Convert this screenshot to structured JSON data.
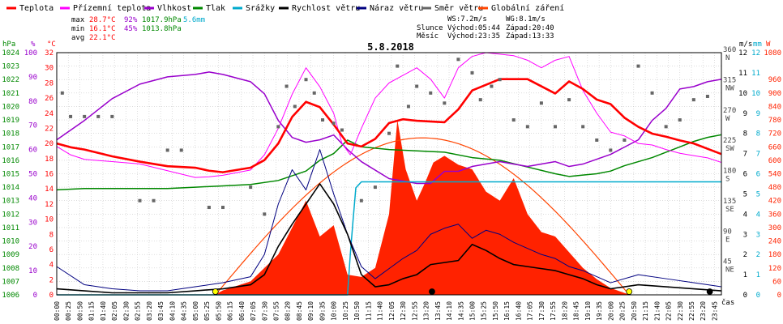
{
  "legend": [
    {
      "label": "Teplota",
      "color": "#ff0000"
    },
    {
      "label": "Přízemní teplota",
      "color": "#ff00ff"
    },
    {
      "label": "Vlhkost",
      "color": "#9900cc"
    },
    {
      "label": "Tlak",
      "color": "#008800"
    },
    {
      "label": "Srážky",
      "color": "#00aacc"
    },
    {
      "label": "Rychlost větru",
      "color": "#000000"
    },
    {
      "label": "Náraz větru",
      "color": "#000080"
    },
    {
      "label": "Směr větru",
      "color": "#666666"
    },
    {
      "label": "Globální záření",
      "color": "#ff4400"
    }
  ],
  "stats": {
    "max": {
      "label": "max",
      "temp": "28.7°C",
      "hum": "92%",
      "press": "1017.9hPa",
      "rain": "5.6mm"
    },
    "min": {
      "label": "min",
      "temp": "16.1°C",
      "hum": "45%",
      "press": "1013.8hPa"
    },
    "avg": {
      "label": "avg",
      "temp": "22.1°C"
    }
  },
  "wind_info": {
    "ws": "WS:7.2m/s",
    "wg": "WG:8.1m/s",
    "slunce": "Slunce",
    "slunce_vychod": "Východ:05:44",
    "slunce_zapad": "Západ:20:40",
    "mesic": "Měsíc",
    "mesic_vychod": "Východ:23:35",
    "mesic_zapad": "Západ:13:33"
  },
  "colors": {
    "temp": "#ff0000",
    "ground": "#ff00ff",
    "hum": "#9900cc",
    "press": "#008800",
    "rain": "#00aacc",
    "wind": "#000000",
    "gust": "#000080",
    "dir": "#666666",
    "rad": "#ff2200",
    "sun": "#ff4400",
    "grid": "#c8c8c8"
  },
  "chart_data": {
    "type": "line",
    "title": "5.8.2018",
    "xlabel": "čas",
    "x_ticks": [
      "00:00",
      "00:25",
      "00:50",
      "01:15",
      "01:40",
      "02:05",
      "02:30",
      "02:55",
      "03:20",
      "03:45",
      "04:10",
      "04:35",
      "05:00",
      "05:25",
      "05:50",
      "06:15",
      "06:40",
      "07:05",
      "07:30",
      "07:55",
      "08:20",
      "08:45",
      "09:10",
      "09:35",
      "10:00",
      "10:25",
      "10:50",
      "11:15",
      "11:40",
      "12:05",
      "12:30",
      "12:55",
      "13:20",
      "13:45",
      "14:10",
      "14:35",
      "15:00",
      "15:25",
      "15:50",
      "16:15",
      "16:40",
      "17:05",
      "17:30",
      "17:55",
      "18:20",
      "18:45",
      "19:10",
      "19:35",
      "20:00",
      "20:25",
      "20:50",
      "21:15",
      "21:40",
      "22:05",
      "22:30",
      "22:55",
      "23:20",
      "23:45"
    ],
    "axes": {
      "hpa": {
        "label": "hPa",
        "min": 1006,
        "max": 1024,
        "ticks": [
          1006,
          1007,
          1008,
          1009,
          1010,
          1011,
          1012,
          1013,
          1014,
          1015,
          1016,
          1017,
          1018,
          1019,
          1020,
          1021,
          1022,
          1023,
          1024
        ]
      },
      "pct": {
        "label": "%",
        "min": 0,
        "max": 100,
        "ticks": [
          0,
          10,
          20,
          30,
          40,
          50,
          60,
          70,
          80,
          90,
          100
        ]
      },
      "temp": {
        "label": "°C",
        "min": 0,
        "max": 32,
        "ticks": [
          0,
          2,
          4,
          6,
          8,
          10,
          12,
          14,
          16,
          18,
          20,
          22,
          24,
          26,
          28,
          30,
          32
        ]
      },
      "dir": {
        "min": 0,
        "max": 360,
        "ticks": [
          {
            "v": 45,
            "l": "45",
            "d": "NE"
          },
          {
            "v": 90,
            "l": "90",
            "d": "E"
          },
          {
            "v": 135,
            "l": "135",
            "d": "SE"
          },
          {
            "v": 180,
            "l": "180",
            "d": "S"
          },
          {
            "v": 225,
            "l": "225",
            "d": "SW"
          },
          {
            "v": 270,
            "l": "270",
            "d": "W"
          },
          {
            "v": 315,
            "l": "315",
            "d": "NW"
          },
          {
            "v": 360,
            "l": "360",
            "d": "N"
          }
        ]
      },
      "ms": {
        "label": "m/s",
        "min": 0,
        "max": 12,
        "ticks": [
          0,
          1,
          2,
          3,
          4,
          5,
          6,
          7,
          8,
          9,
          10,
          11,
          12
        ]
      },
      "mm": {
        "label": "mm",
        "min": 0,
        "max": 12,
        "ticks": [
          0,
          1,
          2,
          3,
          4,
          5,
          6,
          7,
          8,
          9,
          10,
          11,
          12
        ]
      },
      "w": {
        "label": "W",
        "min": 0,
        "max": 1080,
        "ticks": [
          0,
          60,
          120,
          180,
          240,
          300,
          360,
          420,
          480,
          540,
          600,
          660,
          720,
          780,
          840,
          900,
          960,
          1080
        ]
      }
    },
    "series": [
      {
        "name": "Teplota",
        "axis": "temp",
        "x": [
          0,
          0.5,
          1,
          2,
          3,
          4,
          5,
          5.5,
          6,
          7,
          7.5,
          8,
          8.5,
          9,
          9.5,
          10,
          10.5,
          11,
          11.5,
          12,
          12.5,
          13,
          14,
          14.5,
          15,
          16,
          17,
          18,
          18.5,
          19,
          19.5,
          20,
          20.5,
          21,
          21.5,
          22,
          22.5,
          23,
          23.5,
          24
        ],
        "y": [
          20,
          19.5,
          19.2,
          18.3,
          17.6,
          17,
          16.8,
          16.4,
          16.2,
          16.8,
          17.8,
          20,
          23.5,
          25.5,
          24.8,
          22.5,
          20,
          19.6,
          20.6,
          22.7,
          23.2,
          23,
          22.8,
          24.5,
          27,
          28.5,
          28.5,
          26.6,
          28.2,
          27.2,
          25.8,
          25.2,
          23.4,
          22.2,
          21.3,
          20.9,
          20.4,
          20,
          19.3,
          18.6
        ]
      },
      {
        "name": "Přízemní teplota",
        "axis": "temp",
        "x": [
          0,
          0.5,
          1,
          2,
          3,
          4,
          5,
          5.5,
          6,
          7,
          7.5,
          8,
          8.5,
          9,
          9.5,
          10,
          10.3,
          10.6,
          11,
          11.5,
          12,
          12.5,
          13,
          13.5,
          14,
          14.5,
          15,
          15.5,
          16,
          16.5,
          17,
          17.5,
          18,
          18.5,
          19,
          19.5,
          20,
          20.5,
          21,
          21.5,
          22,
          22.5,
          23,
          23.5,
          24
        ],
        "y": [
          19.6,
          18.5,
          17.9,
          17.6,
          17.3,
          16.4,
          15.5,
          15.6,
          15.8,
          16.5,
          18.5,
          22,
          26.5,
          30,
          27.5,
          24,
          20,
          18.5,
          22,
          26,
          28,
          29,
          30,
          28.5,
          26,
          30,
          31.5,
          32,
          31.8,
          31.6,
          31,
          30,
          31,
          31.5,
          27,
          24,
          21.5,
          21,
          20,
          19.8,
          19.2,
          18.7,
          18.4,
          18.1,
          17.5
        ]
      },
      {
        "name": "Vlhkost",
        "axis": "pct",
        "x": [
          0,
          1,
          2,
          3,
          4,
          5,
          5.5,
          6,
          7,
          7.5,
          8,
          8.5,
          9,
          9.5,
          10,
          10.5,
          11,
          12,
          13,
          13.5,
          14,
          14.5,
          15,
          16,
          17,
          18,
          18.5,
          19,
          19.5,
          20,
          20.5,
          21,
          21.5,
          22,
          22.5,
          23,
          23.5,
          24
        ],
        "y": [
          64,
          72,
          81,
          87,
          90,
          91,
          92,
          91,
          88,
          83,
          72,
          65,
          63,
          64,
          66,
          60,
          55,
          48,
          46,
          46,
          51,
          51,
          53,
          55,
          53,
          55,
          53,
          54,
          56,
          58,
          61,
          64,
          72,
          77,
          85,
          86,
          88,
          89
        ]
      },
      {
        "name": "Tlak",
        "axis": "hpa",
        "x": [
          0,
          1,
          2,
          3,
          4,
          5,
          6,
          7,
          8,
          9,
          9.5,
          10,
          10.5,
          11,
          12,
          13,
          14,
          15,
          16,
          17,
          18,
          18.5,
          19,
          19.5,
          20,
          20.5,
          21,
          21.5,
          22,
          22.5,
          23,
          23.5,
          24
        ],
        "y": [
          1013.8,
          1013.9,
          1013.9,
          1013.9,
          1013.9,
          1014,
          1014.1,
          1014.2,
          1014.5,
          1015.2,
          1016,
          1016.5,
          1017.5,
          1017,
          1016.8,
          1016.7,
          1016.6,
          1016.2,
          1016,
          1015.5,
          1015,
          1014.8,
          1014.9,
          1015,
          1015.2,
          1015.6,
          1015.9,
          1016.2,
          1016.6,
          1017,
          1017.4,
          1017.7,
          1017.9
        ]
      },
      {
        "name": "Srážky",
        "axis": "mm",
        "x": [
          0,
          10.5,
          10.6,
          10.7,
          10.8,
          11,
          24
        ],
        "y": [
          0,
          0,
          2,
          3.7,
          5.3,
          5.6,
          5.6
        ]
      },
      {
        "name": "Rychlost větru",
        "axis": "ms",
        "x": [
          0,
          1,
          2,
          3,
          4,
          5,
          6,
          7,
          7.5,
          8,
          8.5,
          9,
          9.5,
          10,
          10.5,
          11,
          11.5,
          12,
          12.5,
          13,
          13.5,
          14,
          14.5,
          15,
          15.5,
          16,
          16.5,
          17,
          17.5,
          18,
          18.5,
          19,
          19.5,
          20,
          21,
          22,
          23,
          24
        ],
        "y": [
          0.3,
          0.2,
          0.1,
          0.1,
          0.1,
          0.2,
          0.3,
          0.5,
          1,
          2.4,
          3.5,
          4.5,
          5.5,
          4.5,
          3,
          1,
          0.4,
          0.5,
          0.8,
          1,
          1.5,
          1.6,
          1.7,
          2.5,
          2.2,
          1.8,
          1.5,
          1.4,
          1.3,
          1.2,
          1,
          0.8,
          0.5,
          0.3,
          0.5,
          0.4,
          0.3,
          0.2
        ]
      },
      {
        "name": "Náraz větru",
        "axis": "ms",
        "x": [
          0,
          1,
          2,
          3,
          4,
          5,
          6,
          7,
          7.5,
          8,
          8.5,
          9,
          9.5,
          10,
          10.5,
          11,
          11.5,
          12,
          12.5,
          13,
          13.5,
          14,
          14.5,
          15,
          15.5,
          16,
          16.5,
          17,
          17.5,
          18,
          18.5,
          19,
          19.5,
          20,
          21,
          22,
          23,
          24
        ],
        "y": [
          1.4,
          0.5,
          0.3,
          0.2,
          0.2,
          0.4,
          0.6,
          0.9,
          2,
          4.5,
          6.2,
          5.2,
          7.2,
          5,
          3,
          1.4,
          0.8,
          1.3,
          1.8,
          2.2,
          3,
          3.3,
          3.5,
          2.8,
          3.2,
          3,
          2.6,
          2.3,
          2,
          1.8,
          1.4,
          1.2,
          0.9,
          0.6,
          1,
          0.8,
          0.6,
          0.4
        ]
      },
      {
        "name": "Globální záření",
        "axis": "w",
        "x": [
          5.7,
          6,
          7,
          8,
          8.5,
          9,
          9.5,
          10,
          10.5,
          11,
          11.5,
          12,
          12.3,
          12.6,
          13,
          13.3,
          13.6,
          14,
          14.5,
          15,
          15.5,
          16,
          16.5,
          17,
          17.5,
          18,
          18.5,
          19,
          19.5,
          20,
          20.7
        ],
        "y": [
          0,
          20,
          60,
          180,
          300,
          420,
          260,
          310,
          90,
          80,
          120,
          360,
          780,
          560,
          420,
          500,
          590,
          620,
          580,
          560,
          460,
          420,
          520,
          360,
          280,
          260,
          190,
          120,
          70,
          30,
          0
        ]
      },
      {
        "name": "Směr větru",
        "axis": "dir",
        "type": "scatter",
        "x": [
          0.2,
          0.5,
          1,
          1.5,
          2,
          3,
          3.5,
          4,
          4.5,
          5.5,
          6,
          7,
          7.5,
          8,
          8.3,
          8.6,
          9,
          9.3,
          9.6,
          10,
          10.3,
          11,
          11.5,
          12,
          12.3,
          12.7,
          13,
          13.5,
          14,
          14.5,
          15,
          15.3,
          15.7,
          16,
          16.5,
          17,
          17.5,
          18,
          18.5,
          19,
          19.5,
          20,
          20.5,
          21,
          21.5,
          22,
          22.5,
          23,
          23.5
        ],
        "y": [
          300,
          265,
          265,
          265,
          265,
          140,
          140,
          215,
          215,
          130,
          130,
          160,
          120,
          250,
          310,
          280,
          320,
          300,
          260,
          255,
          245,
          140,
          160,
          240,
          340,
          280,
          310,
          300,
          285,
          350,
          330,
          290,
          310,
          320,
          260,
          250,
          285,
          250,
          290,
          250,
          230,
          215,
          230,
          340,
          300,
          250,
          260,
          290,
          295
        ]
      }
    ],
    "markers": [
      {
        "name": "Východ slunce",
        "x": 5.73,
        "fill": "#ffff00"
      },
      {
        "name": "Západ slunce",
        "x": 20.67,
        "fill": "#ffff00"
      },
      {
        "name": "Západ měsíce",
        "x": 13.55,
        "fill": "#000000"
      },
      {
        "name": "Východ měsíce",
        "x": 23.58,
        "fill": "#000000"
      }
    ]
  }
}
